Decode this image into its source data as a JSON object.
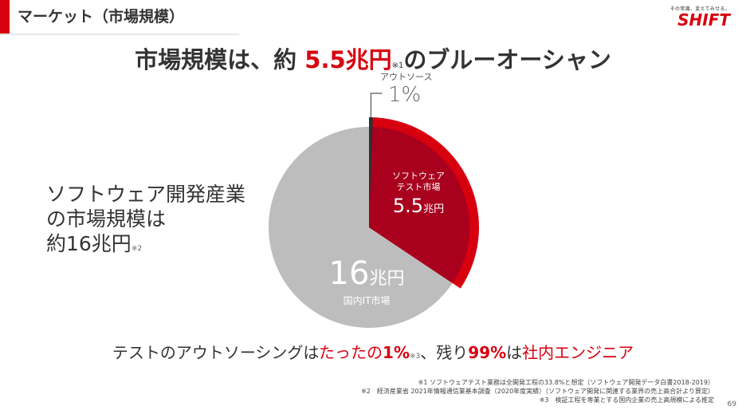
{
  "header": {
    "title": "マーケット（市場規模）",
    "accent_color": "#d7000f"
  },
  "logo": {
    "tagline": "その常識、変えてみせる。",
    "mark": "SHIFT"
  },
  "headline": {
    "prefix": "市場規模は、約 ",
    "highlight": "5.5兆円",
    "note": "※1",
    "suffix": "のブルーオーシャン"
  },
  "left_text": {
    "line1": "ソフトウェア開発産業",
    "line2": "の市場規模は",
    "line3": "約16兆円",
    "note": "※2"
  },
  "chart_data": {
    "type": "pie",
    "slices": [
      {
        "label": "国内IT市場",
        "value": 16,
        "unit": "兆円",
        "color": "#bdbdbd"
      },
      {
        "label": "ソフトウェアテスト市場",
        "value": 5.5,
        "unit": "兆円",
        "color": "#a8001d",
        "highlight_color": "#d7000f"
      },
      {
        "label": "アウトソース",
        "value": 1,
        "unit": "%",
        "color": "#2f2f2f"
      }
    ],
    "test_market_share_of_total": 0.34375,
    "outsourced_share_of_test_market": 0.01,
    "callout": {
      "label": "アウトソース",
      "value": "1%"
    },
    "inner_label": {
      "line1": "ソフトウェア",
      "line2": "テスト市場",
      "value": "5.5",
      "unit": "兆円"
    },
    "outer_label": {
      "value": "16",
      "unit": "兆円",
      "caption": "国内IT市場"
    }
  },
  "conclusion": {
    "part1": "テストのアウトソーシングは",
    "part2": "たったの",
    "part3": "1%",
    "note": "※3",
    "part4": "、残り",
    "part5": "99%",
    "part6": "は",
    "part7": "社内エンジニア"
  },
  "footnotes": {
    "line1": "※1 ソフトウェアテスト業務は全開発工程の33.8%と想定（ソフトウェア開発データ白書2018-2019）",
    "line2": "※2　経済産業省 2021年情報通信業基本調査（2020年度実績）（ソフトウェア開発に関連する業界の売上高合計より算定）",
    "line3": "※3　検証工程を専業とする国内企業の売上高規模による推定"
  },
  "page_number": "69"
}
